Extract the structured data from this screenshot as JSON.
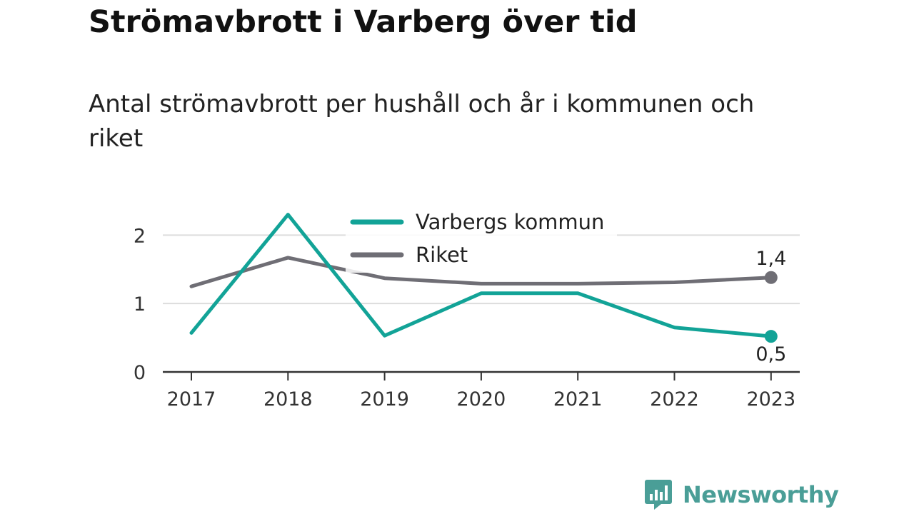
{
  "chart_data": {
    "type": "line",
    "title": "Strömavbrott i Varberg över tid",
    "subtitle": "Antal strömavbrott per hushåll och år i kommunen och riket",
    "x": [
      "2017",
      "2018",
      "2019",
      "2020",
      "2021",
      "2022",
      "2023"
    ],
    "series": [
      {
        "name": "Varbergs kommun",
        "color": "#12a397",
        "values": [
          0.57,
          2.3,
          0.53,
          1.15,
          1.15,
          0.65,
          0.52
        ],
        "end_label": "0,5"
      },
      {
        "name": "Riket",
        "color": "#6f6e75",
        "values": [
          1.25,
          1.67,
          1.37,
          1.29,
          1.29,
          1.31,
          1.38
        ],
        "end_label": "1,4"
      }
    ],
    "ylim": [
      0,
      2.4
    ],
    "yticks": [
      {
        "value": 0,
        "label": "0"
      },
      {
        "value": 1,
        "label": "1"
      },
      {
        "value": 2,
        "label": "2"
      }
    ],
    "grid": true,
    "legend": "top-center"
  },
  "brand": {
    "name": "Newsworthy",
    "icon": "bar-chart-speech-bubble-icon",
    "color": "#4a9e97"
  }
}
